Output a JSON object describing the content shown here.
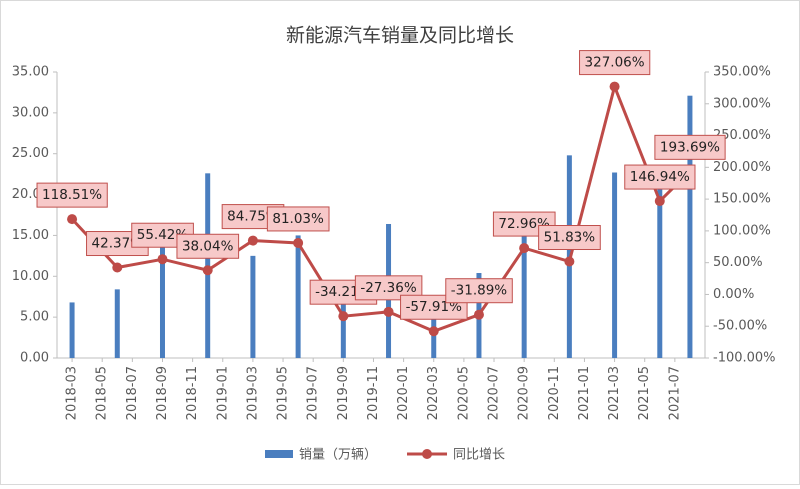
{
  "chart_data": {
    "type": "bar-line",
    "title": "新能源汽车销量及同比增长",
    "x": [
      "2018-03",
      "2018-06",
      "2018-09",
      "2018-12",
      "2019-03",
      "2019-06",
      "2019-09",
      "2019-12",
      "2020-03",
      "2020-06",
      "2020-09",
      "2020-12",
      "2021-03",
      "2021-06",
      "2021-08"
    ],
    "xlim": [
      "2018-02",
      "2021-09"
    ],
    "xticks": [
      "2018-03",
      "2018-05",
      "2018-07",
      "2018-09",
      "2018-11",
      "2019-01",
      "2019-03",
      "2019-05",
      "2019-07",
      "2019-09",
      "2019-11",
      "2020-01",
      "2020-03",
      "2020-05",
      "2020-07",
      "2020-09",
      "2020-11",
      "2021-01",
      "2021-03",
      "2021-05",
      "2021-07"
    ],
    "ylim": [
      0,
      35
    ],
    "yticks": [
      {
        "value": 0,
        "label": "0.00"
      },
      {
        "value": 5,
        "label": "5.00"
      },
      {
        "value": 10,
        "label": "10.00"
      },
      {
        "value": 15,
        "label": "15.00"
      },
      {
        "value": 20,
        "label": "20.00"
      },
      {
        "value": 25,
        "label": "25.00"
      },
      {
        "value": 30,
        "label": "30.00"
      },
      {
        "value": 35,
        "label": "35.00"
      }
    ],
    "y2lim": [
      -100,
      350
    ],
    "y2ticks": [
      {
        "value": -100,
        "label": "-100.00%"
      },
      {
        "value": -50,
        "label": "-50.00%"
      },
      {
        "value": 0,
        "label": "0.00%"
      },
      {
        "value": 50,
        "label": "50.00%"
      },
      {
        "value": 100,
        "label": "100.00%"
      },
      {
        "value": 150,
        "label": "150.00%"
      },
      {
        "value": 200,
        "label": "200.00%"
      },
      {
        "value": 250,
        "label": "250.00%"
      },
      {
        "value": 300,
        "label": "300.00%"
      },
      {
        "value": 350,
        "label": "350.00%"
      }
    ],
    "series": [
      {
        "name": "销量（万辆）",
        "type": "bar",
        "color": "#4a7ebf",
        "values": [
          6.8,
          8.4,
          15.3,
          22.6,
          12.5,
          15.0,
          8.0,
          16.4,
          4.9,
          10.4,
          16.0,
          24.8,
          22.7,
          22.0,
          32.1
        ]
      },
      {
        "name": "同比增长",
        "type": "line",
        "axis": "y2",
        "color": "#be4b48",
        "values": [
          118.51,
          42.37,
          55.42,
          38.04,
          84.75,
          81.03,
          -34.21,
          -27.36,
          -57.91,
          -31.89,
          72.96,
          51.83,
          327.06,
          146.94,
          193.69
        ],
        "value_labels": [
          "118.51%",
          "42.37%",
          "55.42%",
          "38.04%",
          "84.75%",
          "81.03%",
          "-34.21%",
          "-27.36%",
          "-57.91%",
          "-31.89%",
          "72.96%",
          "51.83%",
          "327.06%",
          "146.94%",
          "193.69%"
        ]
      }
    ]
  }
}
